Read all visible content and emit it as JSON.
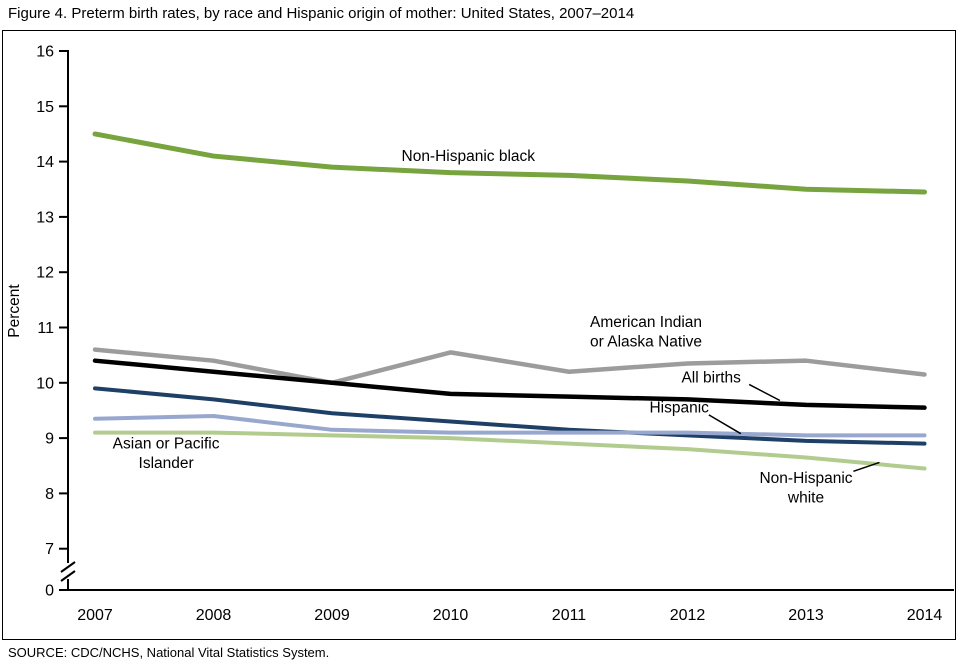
{
  "title": "Figure 4. Preterm birth rates, by race and Hispanic origin of mother: United States, 2007–2014",
  "source": "SOURCE: CDC/NCHS, National Vital Statistics System.",
  "chart_data": {
    "type": "line",
    "x": [
      2007,
      2008,
      2009,
      2010,
      2011,
      2012,
      2013,
      2014
    ],
    "xlabel": "",
    "ylabel": "Percent",
    "ylim": [
      7,
      16
    ],
    "y_axis_break_to_zero": true,
    "y_ticks": [
      0,
      7,
      8,
      9,
      10,
      11,
      12,
      13,
      14,
      15,
      16
    ],
    "grid": false,
    "legend": "inline-annotations",
    "series": [
      {
        "name": "Non-Hispanic white",
        "color": "#B2CC8F",
        "stroke_width": 4,
        "values": [
          9.1,
          9.1,
          9.05,
          9.0,
          8.9,
          8.8,
          8.65,
          8.45
        ]
      },
      {
        "name": "Hispanic",
        "color": "#1E3F66",
        "stroke_width": 4,
        "values": [
          9.9,
          9.7,
          9.45,
          9.3,
          9.15,
          9.05,
          8.95,
          8.9
        ]
      },
      {
        "name": "Asian or Pacific Islander",
        "color": "#98A7CE",
        "stroke_width": 4,
        "values": [
          9.35,
          9.4,
          9.15,
          9.1,
          9.1,
          9.1,
          9.05,
          9.05
        ]
      },
      {
        "name": "American Indian or Alaska Native",
        "color": "#9C9C9C",
        "stroke_width": 4.5,
        "values": [
          10.6,
          10.4,
          10.0,
          10.55,
          10.2,
          10.35,
          10.4,
          10.15
        ]
      },
      {
        "name": "All births",
        "color": "#000000",
        "stroke_width": 4.5,
        "values": [
          10.4,
          10.2,
          10.0,
          9.8,
          9.75,
          9.7,
          9.6,
          9.55
        ]
      },
      {
        "name": "Non-Hispanic black",
        "color": "#77A43E",
        "stroke_width": 5,
        "values": [
          14.5,
          14.1,
          13.9,
          13.8,
          13.75,
          13.65,
          13.5,
          13.45
        ]
      }
    ],
    "annotations": [
      {
        "lines": [
          "Non-Hispanic black"
        ],
        "x": 2010.15,
        "v": [
          14.1
        ],
        "anchor": "middle"
      },
      {
        "lines": [
          "American Indian",
          "or Alaska Native"
        ],
        "x": 2011.65,
        "v": [
          11.1,
          10.75
        ],
        "anchor": "middle"
      },
      {
        "lines": [
          "All births"
        ],
        "x": 2012.2,
        "v": [
          10.1
        ],
        "anchor": "middle",
        "leader": {
          "x1": 2012.52,
          "v1": 9.97,
          "x2": 2012.78,
          "v2": 9.68
        }
      },
      {
        "lines": [
          "Hispanic"
        ],
        "x": 2011.93,
        "v": [
          9.55
        ],
        "anchor": "middle",
        "leader": {
          "x1": 2012.18,
          "v1": 9.42,
          "x2": 2012.45,
          "v2": 9.08
        }
      },
      {
        "lines": [
          "Asian or Pacific",
          "Islander"
        ],
        "x": 2007.6,
        "v": [
          8.9,
          8.55
        ],
        "anchor": "middle"
      },
      {
        "lines": [
          "Non-Hispanic",
          "white"
        ],
        "x": 2013.0,
        "v": [
          8.28,
          7.93
        ],
        "anchor": "middle",
        "leader": {
          "x1": 2013.4,
          "v1": 8.4,
          "x2": 2013.62,
          "v2": 8.56
        }
      }
    ]
  }
}
